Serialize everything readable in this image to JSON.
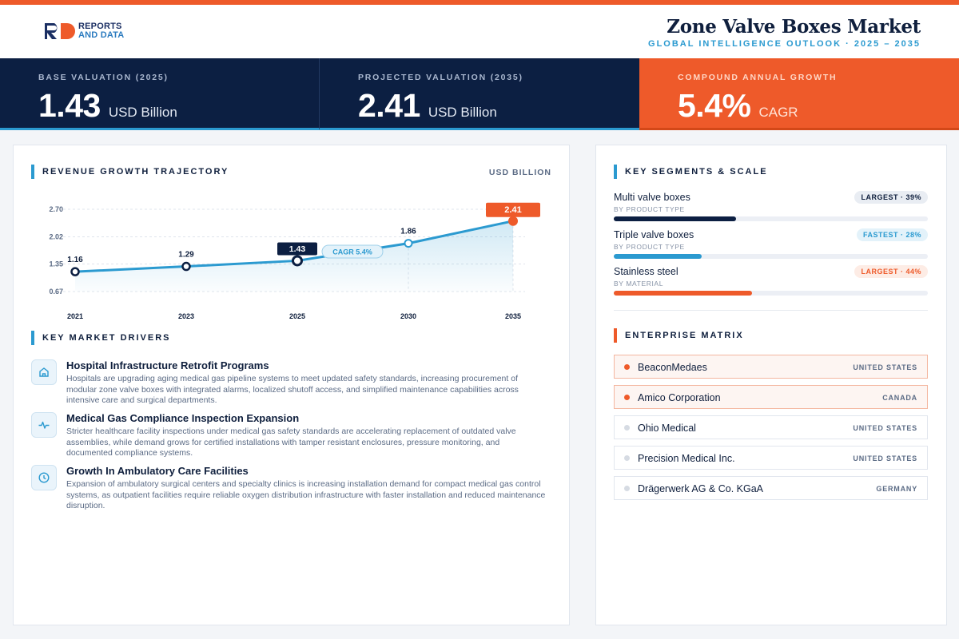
{
  "brand": {
    "line1": "REPORTS",
    "line2": "AND DATA",
    "colors": {
      "accent": "#ee5a2a",
      "navy": "#0c1f42",
      "blue": "#2b9ad0"
    }
  },
  "header": {
    "title": "Zone Valve Boxes Market",
    "subtitle": "GLOBAL INTELLIGENCE OUTLOOK  ·  2025 – 2035"
  },
  "kpis": [
    {
      "label": "BASE VALUATION (2025)",
      "value": "1.43",
      "unit": "USD Billion"
    },
    {
      "label": "PROJECTED VALUATION (2035)",
      "value": "2.41",
      "unit": "USD Billion"
    },
    {
      "label": "COMPOUND ANNUAL GROWTH",
      "value": "5.4%",
      "unit": "CAGR"
    }
  ],
  "chart": {
    "title": "REVENUE GROWTH TRAJECTORY",
    "unit": "USD BILLION",
    "cagr_badge": "CAGR 5.4%"
  },
  "chart_data": {
    "type": "area",
    "title": "REVENUE GROWTH TRAJECTORY",
    "ylabel": "USD BILLION",
    "categories": [
      "2021",
      "2023",
      "2025",
      "2030",
      "2035"
    ],
    "values": [
      1.16,
      1.29,
      1.43,
      1.86,
      2.41
    ],
    "value_labels": [
      "1.16",
      "1.29",
      "1.43",
      "1.86",
      "2.41"
    ],
    "yticks": [
      "0.67",
      "1.35",
      "2.02",
      "2.70"
    ],
    "ylim": [
      0.67,
      2.7
    ],
    "grid": true,
    "highlight": {
      "2025": "navy",
      "2035": "orange"
    }
  },
  "drivers": {
    "title": "KEY MARKET DRIVERS",
    "items": [
      {
        "icon": "hospital-icon",
        "title": "Hospital Infrastructure Retrofit Programs",
        "desc": "Hospitals are upgrading aging medical gas pipeline systems to meet updated safety standards, increasing procurement of modular zone valve boxes with integrated alarms, localized shutoff access, and simplified maintenance capabilities across intensive care and surgical departments."
      },
      {
        "icon": "pulse-icon",
        "title": "Medical Gas Compliance Inspection Expansion",
        "desc": "Stricter healthcare facility inspections under medical gas safety standards are accelerating replacement of outdated valve assemblies, while demand grows for certified installations with tamper resistant enclosures, pressure monitoring, and documented compliance systems."
      },
      {
        "icon": "clock-icon",
        "title": "Growth In Ambulatory Care Facilities",
        "desc": "Expansion of ambulatory surgical centers and specialty clinics is increasing installation demand for compact medical gas control systems, as outpatient facilities require reliable oxygen distribution infrastructure with faster installation and reduced maintenance disruption."
      }
    ]
  },
  "segments": {
    "title": "KEY SEGMENTS & SCALE",
    "items": [
      {
        "name": "Multi valve boxes",
        "category": "BY PRODUCT TYPE",
        "badge": "LARGEST · 39%",
        "share": 0.39,
        "color": "#0c1f42",
        "badge_style": "navy"
      },
      {
        "name": "Triple valve boxes",
        "category": "BY PRODUCT TYPE",
        "badge": "FASTEST · 28%",
        "share": 0.28,
        "color": "#2b9ad0",
        "badge_style": "blue"
      },
      {
        "name": "Stainless steel",
        "category": "BY MATERIAL",
        "badge": "LARGEST · 44%",
        "share": 0.44,
        "color": "#ee5a2a",
        "badge_style": "orange"
      }
    ]
  },
  "enterprise": {
    "title": "ENTERPRISE MATRIX",
    "items": [
      {
        "name": "BeaconMedaes",
        "country": "UNITED STATES",
        "highlight": true
      },
      {
        "name": "Amico Corporation",
        "country": "CANADA",
        "highlight": true
      },
      {
        "name": "Ohio Medical",
        "country": "UNITED STATES",
        "highlight": false
      },
      {
        "name": "Precision Medical Inc.",
        "country": "UNITED STATES",
        "highlight": false
      },
      {
        "name": "Drägerwerk AG & Co. KGaA",
        "country": "GERMANY",
        "highlight": false
      }
    ]
  }
}
